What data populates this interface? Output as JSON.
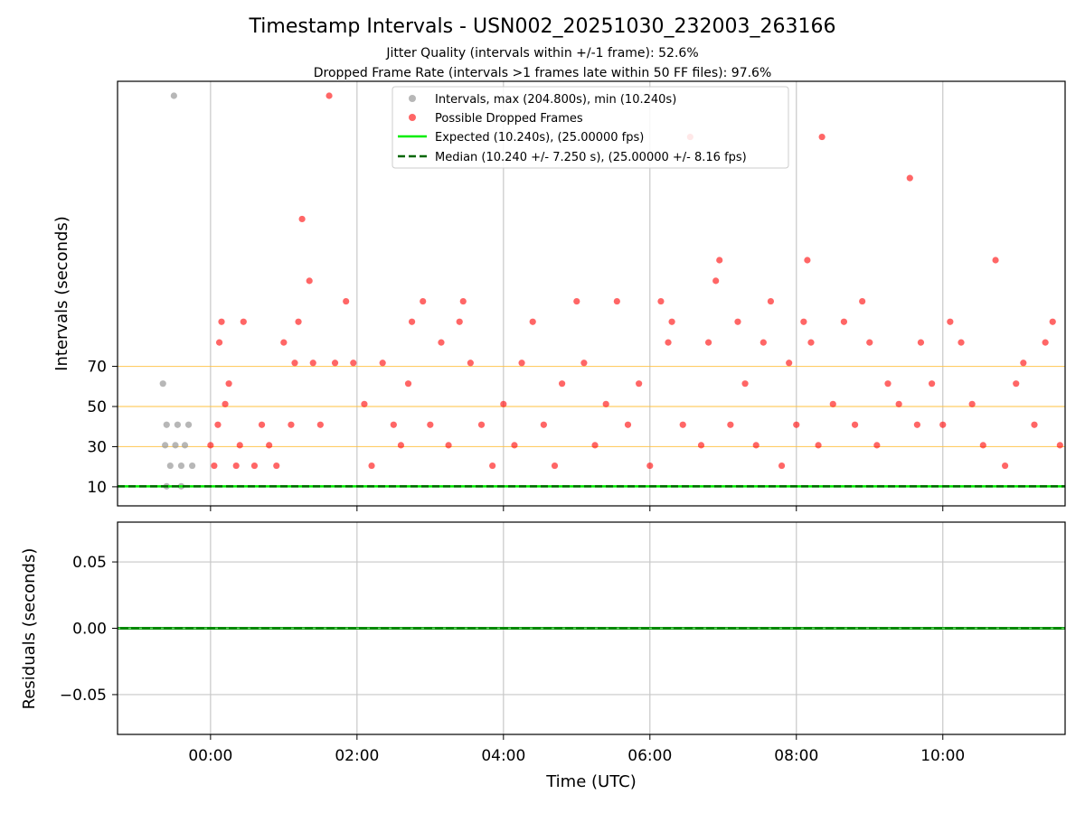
{
  "chart_data": [
    {
      "type": "scatter",
      "title": "Timestamp Intervals - USN002_20251030_232003_263166",
      "subtitle_1": "Jitter Quality (intervals within +/-1 frame): 52.6%",
      "subtitle_2": "Dropped Frame Rate (intervals >1 frames late within 50 FF files): 97.6%",
      "ylabel": "Intervals (seconds)",
      "x_ticks": [
        "00:00",
        "02:00",
        "04:00",
        "06:00",
        "08:00",
        "10:00"
      ],
      "y_ticks": [
        "10",
        "30",
        "50",
        "70"
      ],
      "xlim_hours": [
        -1.27,
        11.67
      ],
      "ylim": [
        0.5,
        212.0
      ],
      "grid": true,
      "legend_position": "upper center",
      "reference_lines": [
        30,
        50,
        70
      ],
      "series": [
        {
          "name": "Intervals, max (204.800s), min (10.240s)",
          "color": "#999999",
          "points": [
            [
              -0.65,
              61.4
            ],
            [
              -0.62,
              30.7
            ],
            [
              -0.6,
              40.9
            ],
            [
              -0.55,
              20.5
            ],
            [
              -0.5,
              204.8
            ],
            [
              -0.48,
              30.7
            ],
            [
              -0.45,
              40.9
            ],
            [
              -0.4,
              20.5
            ],
            [
              -0.35,
              30.7
            ],
            [
              -0.3,
              40.9
            ],
            [
              -0.25,
              20.5
            ],
            [
              -0.6,
              10.24
            ],
            [
              -0.4,
              10.24
            ]
          ]
        },
        {
          "name": "Possible Dropped Frames",
          "color": "#ff0000",
          "points": [
            [
              0.0,
              30.7
            ],
            [
              0.05,
              20.5
            ],
            [
              0.1,
              40.9
            ],
            [
              0.12,
              81.9
            ],
            [
              0.15,
              92.2
            ],
            [
              0.2,
              51.2
            ],
            [
              0.25,
              61.4
            ],
            [
              0.35,
              20.5
            ],
            [
              0.4,
              30.7
            ],
            [
              0.45,
              92.2
            ],
            [
              0.6,
              20.5
            ],
            [
              0.7,
              40.9
            ],
            [
              0.8,
              30.7
            ],
            [
              0.9,
              20.5
            ],
            [
              1.0,
              81.9
            ],
            [
              1.1,
              40.9
            ],
            [
              1.15,
              71.7
            ],
            [
              1.2,
              92.2
            ],
            [
              1.25,
              143.4
            ],
            [
              1.35,
              112.6
            ],
            [
              1.4,
              71.7
            ],
            [
              1.5,
              40.9
            ],
            [
              1.62,
              204.8
            ],
            [
              1.7,
              71.7
            ],
            [
              1.85,
              102.4
            ],
            [
              1.95,
              71.7
            ],
            [
              2.1,
              51.2
            ],
            [
              2.2,
              20.5
            ],
            [
              2.35,
              71.7
            ],
            [
              2.5,
              40.9
            ],
            [
              2.6,
              30.7
            ],
            [
              2.7,
              61.4
            ],
            [
              2.75,
              92.2
            ],
            [
              2.9,
              102.4
            ],
            [
              3.0,
              40.9
            ],
            [
              3.15,
              81.9
            ],
            [
              3.25,
              30.7
            ],
            [
              3.4,
              92.2
            ],
            [
              3.45,
              102.4
            ],
            [
              3.55,
              71.7
            ],
            [
              3.7,
              40.9
            ],
            [
              3.85,
              20.5
            ],
            [
              4.0,
              51.2
            ],
            [
              4.15,
              30.7
            ],
            [
              4.25,
              71.7
            ],
            [
              4.4,
              92.2
            ],
            [
              4.55,
              40.9
            ],
            [
              4.7,
              20.5
            ],
            [
              4.8,
              61.4
            ],
            [
              5.0,
              102.4
            ],
            [
              5.1,
              71.7
            ],
            [
              5.25,
              30.7
            ],
            [
              5.4,
              51.2
            ],
            [
              5.55,
              102.4
            ],
            [
              5.7,
              40.9
            ],
            [
              5.85,
              61.4
            ],
            [
              6.0,
              20.5
            ],
            [
              6.15,
              102.4
            ],
            [
              6.25,
              81.9
            ],
            [
              6.3,
              92.2
            ],
            [
              6.45,
              40.9
            ],
            [
              6.55,
              184.3
            ],
            [
              6.7,
              30.7
            ],
            [
              6.8,
              81.9
            ],
            [
              6.9,
              112.6
            ],
            [
              6.95,
              122.9
            ],
            [
              7.1,
              40.9
            ],
            [
              7.2,
              92.2
            ],
            [
              7.3,
              61.4
            ],
            [
              7.45,
              30.7
            ],
            [
              7.55,
              81.9
            ],
            [
              7.65,
              102.4
            ],
            [
              7.8,
              20.5
            ],
            [
              7.9,
              71.7
            ],
            [
              8.0,
              40.9
            ],
            [
              8.1,
              92.2
            ],
            [
              8.15,
              122.9
            ],
            [
              8.2,
              81.9
            ],
            [
              8.3,
              30.7
            ],
            [
              8.35,
              184.3
            ],
            [
              8.5,
              51.2
            ],
            [
              8.65,
              92.2
            ],
            [
              8.8,
              40.9
            ],
            [
              8.9,
              102.4
            ],
            [
              9.0,
              81.9
            ],
            [
              9.1,
              30.7
            ],
            [
              9.25,
              61.4
            ],
            [
              9.4,
              51.2
            ],
            [
              9.55,
              163.8
            ],
            [
              9.65,
              40.9
            ],
            [
              9.7,
              81.9
            ],
            [
              9.85,
              61.4
            ],
            [
              10.0,
              40.9
            ],
            [
              10.1,
              92.2
            ],
            [
              10.25,
              81.9
            ],
            [
              10.4,
              51.2
            ],
            [
              10.55,
              30.7
            ],
            [
              10.72,
              122.9
            ],
            [
              10.85,
              20.5
            ],
            [
              11.0,
              61.4
            ],
            [
              11.1,
              71.7
            ],
            [
              11.25,
              40.9
            ],
            [
              11.4,
              81.9
            ],
            [
              11.5,
              92.2
            ],
            [
              11.6,
              30.7
            ]
          ]
        },
        {
          "name": "Expected (10.240s), (25.00000 fps)",
          "color": "#00ee00",
          "y": 10.24
        },
        {
          "name": "Median (10.240 +/- 7.250 s), (25.00000 +/- 8.16 fps)",
          "color": "#006600",
          "y": 10.24
        }
      ]
    },
    {
      "type": "line",
      "xlabel": "Time (UTC)",
      "ylabel": "Residuals (seconds)",
      "x_ticks": [
        "00:00",
        "02:00",
        "04:00",
        "06:00",
        "08:00",
        "10:00"
      ],
      "y_ticks": [
        "0.05",
        "0.00",
        "−0.05"
      ],
      "y_tick_values": [
        0.05,
        0.0,
        -0.05
      ],
      "ylim": [
        -0.08,
        0.08
      ],
      "grid": true,
      "series": [
        {
          "name": "",
          "color": "#008800",
          "y": 0.0
        }
      ]
    }
  ],
  "colors": {
    "intervals": "#999999",
    "dropped": "#ff0000",
    "expected": "#00ee00",
    "median": "#006600",
    "reference_line": "#ffc040"
  }
}
